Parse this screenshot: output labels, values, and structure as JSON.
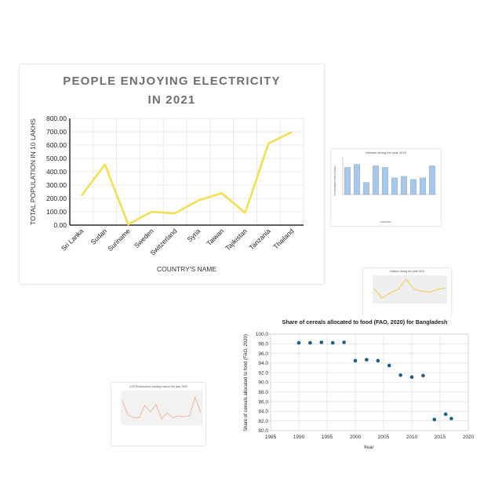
{
  "chart_data": [
    {
      "id": "main",
      "type": "line",
      "title_line1": "PEOPLE ENJOYING ELECTRICITY",
      "title_line2": "IN 2021",
      "xlabel": "COUNTRY'S NAME",
      "ylabel": "TOTAL POPULATION IN 10 LAKHS",
      "categories": [
        "Sri Lanka",
        "Sudan",
        "Suriname",
        "Sweden",
        "Switzerland",
        "Syria",
        "Taiwan",
        "Tajikistan",
        "Tanzania",
        "Thailand"
      ],
      "series": [
        {
          "values": [
            220,
            455,
            5,
            100,
            88,
            185,
            240,
            92,
            612,
            698
          ]
        }
      ],
      "ylim": [
        0,
        800
      ],
      "yticks": [
        "0.00",
        "100.00",
        "200.00",
        "300.00",
        "400.00",
        "500.00",
        "600.00",
        "700.00",
        "800.00"
      ],
      "grid": true,
      "colors": {
        "line": "#f2e050",
        "title": "#6f6f6f",
        "axis": "#000000",
        "grid": "#e4e4e4"
      }
    },
    {
      "id": "inflation-2015",
      "type": "bar",
      "title": "Inflation during the year 2015",
      "xlabel": "COUNTRY",
      "ylabel": "CONSUMER PRICE INDEX",
      "values": [
        18,
        20,
        8,
        19,
        18,
        11,
        12,
        10,
        11,
        19
      ],
      "ylim": [
        0,
        25
      ],
      "colors": {
        "bar": "#a9c7e8",
        "bar_edge": "#6f97c7"
      }
    },
    {
      "id": "inflation",
      "type": "line",
      "title": "Inflation during the year 2020",
      "values": [
        3.2,
        1.0,
        2.2,
        3.0,
        5.3,
        3.1,
        2.6,
        2.4,
        3.0,
        3.3
      ],
      "ylim": [
        0,
        6
      ],
      "colors": {
        "line": "#f2c94c",
        "background": "#efefef"
      }
    },
    {
      "id": "cereals",
      "type": "scatter",
      "title": "Share of cereals allocated to food (FAO, 2020) for Bangladesh",
      "xlabel": "Year",
      "ylabel": "Share of cereals allocated to food (FAO, 2020)",
      "x": [
        1990,
        1992,
        1994,
        1996,
        1998,
        2000,
        2002,
        2004,
        2006,
        2008,
        2010,
        2012,
        2014,
        2016,
        2017
      ],
      "y": [
        98.2,
        98.2,
        98.3,
        98.2,
        98.3,
        94.5,
        94.7,
        94.5,
        93.5,
        91.5,
        91.1,
        91.4,
        82.3,
        83.4,
        82.5
      ],
      "xlim": [
        1985,
        2020
      ],
      "ylim": [
        80,
        100
      ],
      "xticks": [
        "1985",
        "1990",
        "1995",
        "2000",
        "2005",
        "2010",
        "2015",
        "2020"
      ],
      "yticks": [
        "80.0",
        "82.0",
        "84.0",
        "86.0",
        "88.0",
        "90.0",
        "92.0",
        "94.0",
        "96.0",
        "98.0",
        "100.0"
      ],
      "grid": true,
      "colors": {
        "point": "#1f5f86",
        "grid": "#dcdcdc",
        "title": "#222222"
      }
    },
    {
      "id": "co2",
      "type": "line",
      "title": "CO2 Emissions by burning coal for the year 2005",
      "values": [
        2500,
        1000,
        700,
        700,
        2000,
        1300,
        2100,
        600,
        1200,
        700,
        900,
        800,
        900,
        2900,
        1200
      ],
      "ylim": [
        0,
        3500
      ],
      "colors": {
        "line": "#f4a58a",
        "background": "#f2f2f2"
      }
    }
  ]
}
